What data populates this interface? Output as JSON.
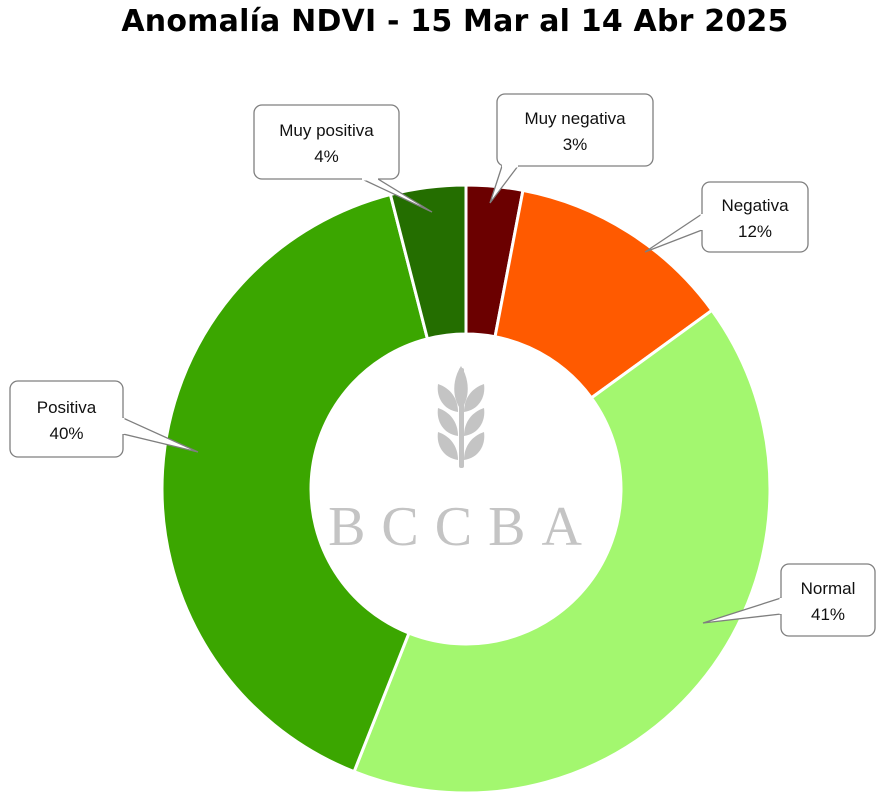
{
  "chart_data": {
    "type": "pie",
    "donut": true,
    "title": "Anomalía NDVI - 15 Mar al 14 Abr 2025",
    "slices": [
      {
        "label": "Muy negativa",
        "value": 3,
        "pct_label": "3%",
        "color": "#6b0000"
      },
      {
        "label": "Negativa",
        "value": 12,
        "pct_label": "12%",
        "color": "#ff5a00"
      },
      {
        "label": "Normal",
        "value": 41,
        "pct_label": "41%",
        "color": "#a3f76f"
      },
      {
        "label": "Positiva",
        "value": 40,
        "pct_label": "40%",
        "color": "#3ba600"
      },
      {
        "label": "Muy positiva",
        "value": 4,
        "pct_label": "4%",
        "color": "#246e00"
      }
    ],
    "start_angle": "top",
    "direction": "clockwise",
    "labels": "callouts with leader lines"
  },
  "watermark": {
    "text": "BCCBA",
    "icon": "wheat-icon",
    "color": "#c4c4c4"
  }
}
